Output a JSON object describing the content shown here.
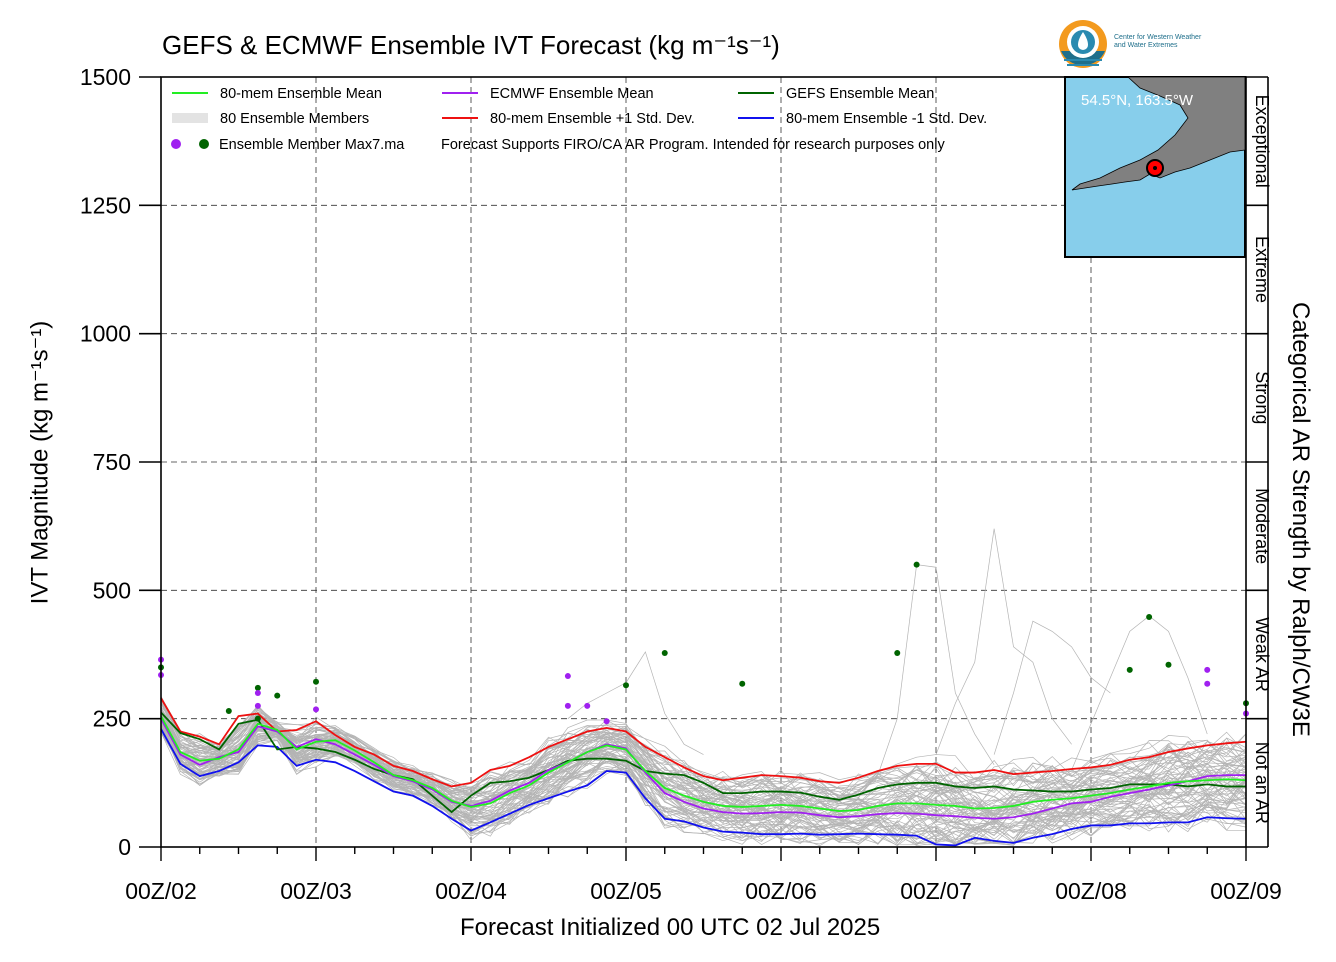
{
  "title": "GEFS & ECMWF Ensemble IVT Forecast (kg m⁻¹s⁻¹)",
  "logo": {
    "line1": "Center for Western Weather",
    "line2": "and Water Extremes"
  },
  "legend": {
    "mean80": "80-mem Ensemble Mean",
    "ecmwf": "ECMWF Ensemble Mean",
    "gefs": "GEFS Ensemble Mean",
    "members": "80 Ensemble Members",
    "plus1": "80-mem Ensemble +1 Std. Dev.",
    "minus1": "80-mem Ensemble -1 Std. Dev.",
    "max7": "Ensemble Member Max7.ma",
    "note": "Forecast Supports FIRO/CA AR Program. Intended for research purposes only"
  },
  "inset": {
    "location": "54.5°N, 163.5°W",
    "colors": {
      "ocean": "#87ceeb",
      "land": "#808080",
      "marker": "#ff0000"
    }
  },
  "chart_data": {
    "type": "line",
    "xlabel": "Forecast Initialized 00 UTC 02 Jul 2025",
    "ylabel": "IVT Magnitude (kg m⁻¹s⁻¹)",
    "right_label": "Categorical AR Strength by Ralph/CW3E",
    "ylim": [
      0,
      1500
    ],
    "yticks": [
      0,
      250,
      500,
      750,
      1000,
      1250,
      1500
    ],
    "xlim": [
      0,
      168
    ],
    "xticks": [
      {
        "hour": 0,
        "label": "00Z/02"
      },
      {
        "hour": 24,
        "label": "00Z/03"
      },
      {
        "hour": 48,
        "label": "00Z/04"
      },
      {
        "hour": 72,
        "label": "00Z/05"
      },
      {
        "hour": 96,
        "label": "00Z/06"
      },
      {
        "hour": 120,
        "label": "00Z/07"
      },
      {
        "hour": 144,
        "label": "00Z/08"
      },
      {
        "hour": 168,
        "label": "00Z/09"
      }
    ],
    "grid": true,
    "categories": [
      {
        "name": "Not an AR",
        "from": 0,
        "to": 250
      },
      {
        "name": "Weak AR",
        "from": 250,
        "to": 500
      },
      {
        "name": "Moderate",
        "from": 500,
        "to": 750
      },
      {
        "name": "Strong",
        "from": 750,
        "to": 1000
      },
      {
        "name": "Extreme",
        "from": 1000,
        "to": 1250
      },
      {
        "name": "Exceptional",
        "from": 1250,
        "to": 1500
      }
    ],
    "series": [
      {
        "name": "80-mem Ensemble Mean",
        "color": "#22ee22",
        "x": [
          0,
          3,
          6,
          9,
          12,
          15,
          18,
          21,
          24,
          27,
          30,
          33,
          36,
          39,
          42,
          45,
          48,
          51,
          54,
          57,
          60,
          63,
          66,
          69,
          72,
          75,
          78,
          81,
          84,
          87,
          90,
          93,
          96,
          99,
          102,
          105,
          108,
          111,
          114,
          117,
          120,
          123,
          126,
          129,
          132,
          135,
          138,
          141,
          144,
          147,
          150,
          153,
          156,
          159,
          162,
          165,
          168
        ],
        "y": [
          255,
          185,
          168,
          172,
          190,
          240,
          228,
          190,
          205,
          208,
          188,
          165,
          140,
          130,
          115,
          90,
          78,
          85,
          105,
          120,
          145,
          165,
          185,
          198,
          190,
          148,
          115,
          100,
          88,
          80,
          78,
          80,
          82,
          80,
          75,
          70,
          72,
          80,
          85,
          85,
          82,
          80,
          75,
          76,
          80,
          88,
          92,
          95,
          100,
          105,
          112,
          118,
          125,
          128,
          130,
          132,
          130
        ]
      },
      {
        "name": "ECMWF Ensemble Mean",
        "color": "#a020f0",
        "x": [
          0,
          3,
          6,
          9,
          12,
          15,
          18,
          21,
          24,
          27,
          30,
          33,
          36,
          39,
          42,
          45,
          48,
          51,
          54,
          57,
          60,
          63,
          66,
          69,
          72,
          75,
          78,
          81,
          84,
          87,
          90,
          93,
          96,
          99,
          102,
          105,
          108,
          111,
          114,
          117,
          120,
          123,
          126,
          129,
          132,
          135,
          138,
          141,
          144,
          147,
          150,
          153,
          156,
          159,
          162,
          165,
          168
        ],
        "y": [
          250,
          180,
          160,
          175,
          185,
          235,
          225,
          195,
          210,
          200,
          180,
          160,
          138,
          128,
          112,
          88,
          80,
          90,
          110,
          125,
          150,
          165,
          185,
          200,
          192,
          145,
          105,
          88,
          75,
          68,
          65,
          66,
          68,
          67,
          62,
          58,
          60,
          64,
          66,
          65,
          62,
          60,
          57,
          55,
          58,
          65,
          75,
          85,
          88,
          98,
          105,
          112,
          120,
          128,
          138,
          140,
          140
        ]
      },
      {
        "name": "GEFS Ensemble Mean",
        "color": "#006400",
        "x": [
          0,
          3,
          6,
          9,
          12,
          15,
          18,
          21,
          24,
          27,
          30,
          33,
          36,
          39,
          42,
          45,
          48,
          51,
          54,
          57,
          60,
          63,
          66,
          69,
          72,
          75,
          78,
          81,
          84,
          87,
          90,
          93,
          96,
          99,
          102,
          105,
          108,
          111,
          114,
          117,
          120,
          123,
          126,
          129,
          132,
          135,
          138,
          141,
          144,
          147,
          150,
          153,
          156,
          159,
          162,
          165,
          168
        ],
        "y": [
          262,
          222,
          210,
          190,
          240,
          248,
          190,
          195,
          192,
          185,
          170,
          152,
          140,
          132,
          100,
          68,
          100,
          125,
          128,
          135,
          150,
          168,
          172,
          172,
          168,
          148,
          143,
          140,
          125,
          105,
          105,
          108,
          108,
          106,
          98,
          92,
          102,
          115,
          122,
          125,
          125,
          118,
          115,
          118,
          112,
          110,
          108,
          108,
          112,
          115,
          122,
          122,
          122,
          118,
          122,
          118,
          118
        ]
      },
      {
        "name": "80-mem Ensemble +1 Std. Dev.",
        "color": "#ee1111",
        "x": [
          0,
          3,
          6,
          9,
          12,
          15,
          18,
          21,
          24,
          27,
          30,
          33,
          36,
          39,
          42,
          45,
          48,
          51,
          54,
          57,
          60,
          63,
          66,
          69,
          72,
          75,
          78,
          81,
          84,
          87,
          90,
          93,
          96,
          99,
          102,
          105,
          108,
          111,
          114,
          117,
          120,
          123,
          126,
          129,
          132,
          135,
          138,
          141,
          144,
          147,
          150,
          153,
          156,
          159,
          162,
          165,
          168
        ],
        "y": [
          290,
          225,
          215,
          200,
          255,
          260,
          225,
          228,
          245,
          218,
          195,
          180,
          158,
          148,
          132,
          118,
          125,
          150,
          158,
          175,
          195,
          210,
          225,
          232,
          225,
          195,
          175,
          155,
          138,
          130,
          135,
          140,
          138,
          135,
          128,
          125,
          135,
          148,
          158,
          162,
          162,
          145,
          145,
          150,
          142,
          145,
          148,
          152,
          155,
          160,
          170,
          175,
          185,
          192,
          198,
          202,
          205
        ]
      },
      {
        "name": "80-mem Ensemble -1 Std. Dev.",
        "color": "#1111ee",
        "x": [
          0,
          3,
          6,
          9,
          12,
          15,
          18,
          21,
          24,
          27,
          30,
          33,
          36,
          39,
          42,
          45,
          48,
          51,
          54,
          57,
          60,
          63,
          66,
          69,
          72,
          75,
          78,
          81,
          84,
          87,
          90,
          93,
          96,
          99,
          102,
          105,
          108,
          111,
          114,
          117,
          120,
          123,
          126,
          129,
          132,
          135,
          138,
          141,
          144,
          147,
          150,
          153,
          156,
          159,
          162,
          165,
          168
        ],
        "y": [
          230,
          162,
          138,
          148,
          165,
          198,
          195,
          158,
          170,
          165,
          148,
          128,
          108,
          100,
          80,
          55,
          32,
          48,
          65,
          82,
          95,
          108,
          120,
          148,
          145,
          95,
          55,
          50,
          38,
          30,
          28,
          25,
          25,
          26,
          24,
          25,
          26,
          25,
          24,
          22,
          5,
          3,
          18,
          12,
          8,
          18,
          25,
          35,
          42,
          42,
          46,
          46,
          48,
          48,
          58,
          56,
          55
        ]
      }
    ],
    "members_note": "80 ensemble member traces drawn in light gray",
    "max7_points": [
      {
        "hour": 0,
        "value": 365,
        "source": "ECMWF"
      },
      {
        "hour": 0,
        "value": 350,
        "source": "GEFS"
      },
      {
        "hour": 0,
        "value": 335,
        "source": "ECMWF"
      },
      {
        "hour": 10.5,
        "value": 265,
        "source": "GEFS"
      },
      {
        "hour": 15,
        "value": 310,
        "source": "GEFS"
      },
      {
        "hour": 15,
        "value": 300,
        "source": "ECMWF"
      },
      {
        "hour": 15,
        "value": 275,
        "source": "ECMWF"
      },
      {
        "hour": 15,
        "value": 250,
        "source": "GEFS"
      },
      {
        "hour": 18,
        "value": 295,
        "source": "GEFS"
      },
      {
        "hour": 24,
        "value": 322,
        "source": "GEFS"
      },
      {
        "hour": 24,
        "value": 268,
        "source": "ECMWF"
      },
      {
        "hour": 63,
        "value": 333,
        "source": "ECMWF"
      },
      {
        "hour": 63,
        "value": 275,
        "source": "ECMWF"
      },
      {
        "hour": 66,
        "value": 275,
        "source": "ECMWF"
      },
      {
        "hour": 69,
        "value": 245,
        "source": "ECMWF"
      },
      {
        "hour": 72,
        "value": 315,
        "source": "GEFS"
      },
      {
        "hour": 78,
        "value": 378,
        "source": "GEFS"
      },
      {
        "hour": 90,
        "value": 318,
        "source": "GEFS"
      },
      {
        "hour": 114,
        "value": 378,
        "source": "GEFS"
      },
      {
        "hour": 117,
        "value": 550,
        "source": "GEFS"
      },
      {
        "hour": 150,
        "value": 345,
        "source": "GEFS"
      },
      {
        "hour": 153,
        "value": 448,
        "source": "GEFS"
      },
      {
        "hour": 156,
        "value": 355,
        "source": "GEFS"
      },
      {
        "hour": 162,
        "value": 345,
        "source": "ECMWF"
      },
      {
        "hour": 162,
        "value": 318,
        "source": "ECMWF"
      },
      {
        "hour": 168,
        "value": 280,
        "source": "GEFS"
      },
      {
        "hour": 168,
        "value": 260,
        "source": "ECMWF"
      }
    ]
  }
}
